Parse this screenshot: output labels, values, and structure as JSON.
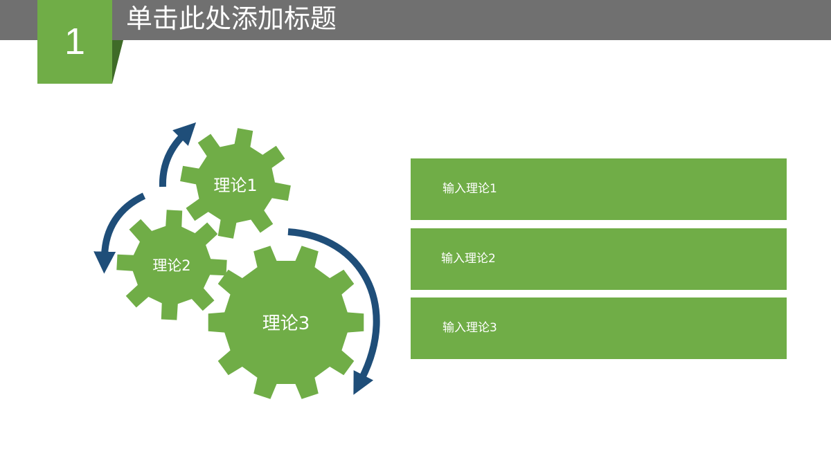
{
  "slide": {
    "title": "单击此处添加标题",
    "number": "1"
  },
  "diagram": {
    "gears": [
      {
        "label": "理论1"
      },
      {
        "label": "理论2"
      },
      {
        "label": "理论3"
      }
    ],
    "panels": [
      {
        "text": "输入理论1"
      },
      {
        "text": "输入理论2"
      },
      {
        "text": "输入理论3"
      }
    ]
  },
  "colors": {
    "title_bar": "#707070",
    "accent_green": "#70ad47",
    "accent_dark_green": "#3f6b28",
    "arrow_blue": "#1f4e79",
    "text": "#ffffff"
  },
  "icons": [
    "gear-icon",
    "curved-arrow-icon"
  ]
}
